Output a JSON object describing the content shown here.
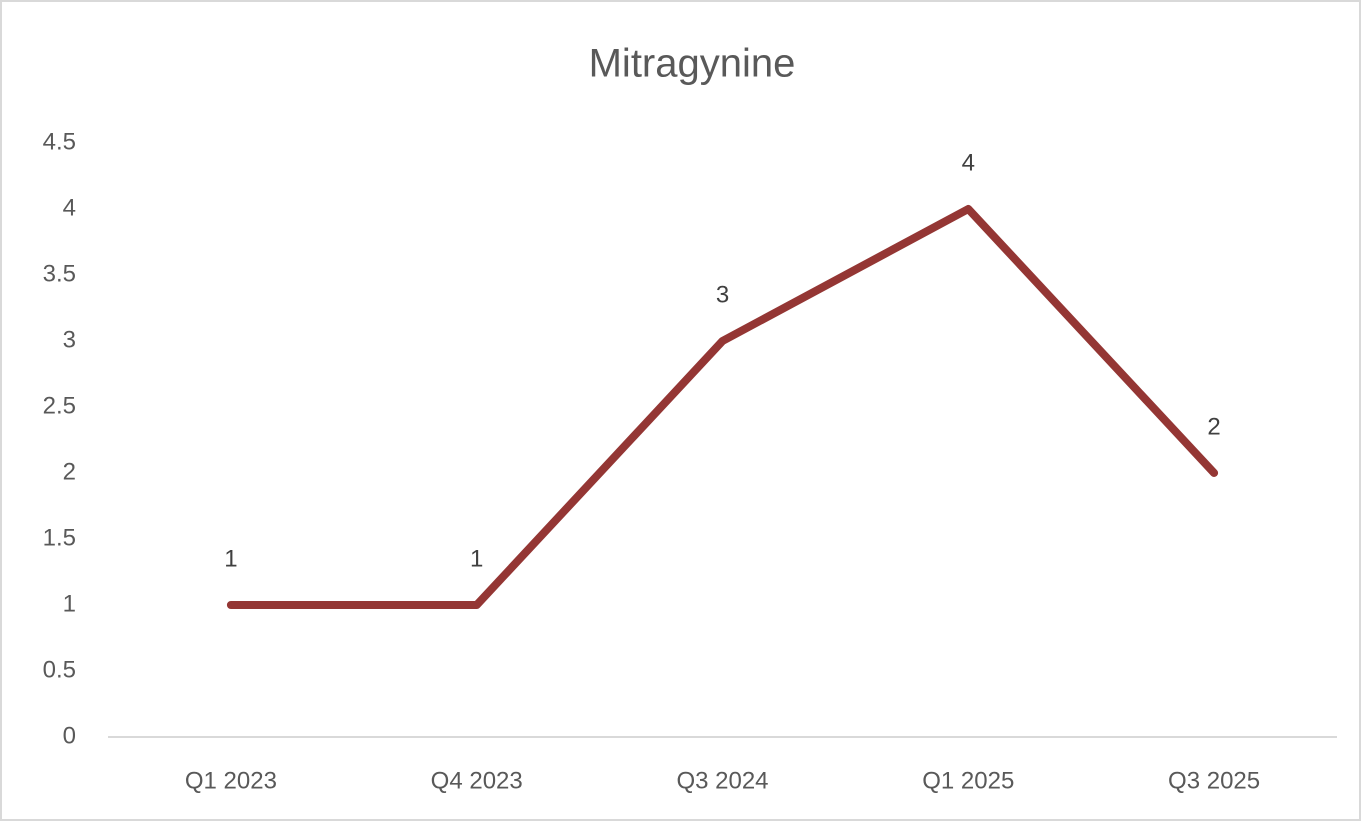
{
  "chart_data": {
    "type": "line",
    "title": "Mitragynine",
    "categories": [
      "Q1 2023",
      "Q4 2023",
      "Q3 2024",
      "Q1 2025",
      "Q3 2025"
    ],
    "series": [
      {
        "name": "Mitragynine",
        "color": "#943634",
        "values": [
          1,
          1,
          3,
          4,
          2
        ]
      }
    ],
    "ylim": [
      0,
      4.5
    ],
    "yticks": [
      0,
      0.5,
      1,
      1.5,
      2,
      2.5,
      3,
      3.5,
      4,
      4.5
    ],
    "grid": false,
    "legend": false,
    "data_labels": true
  }
}
